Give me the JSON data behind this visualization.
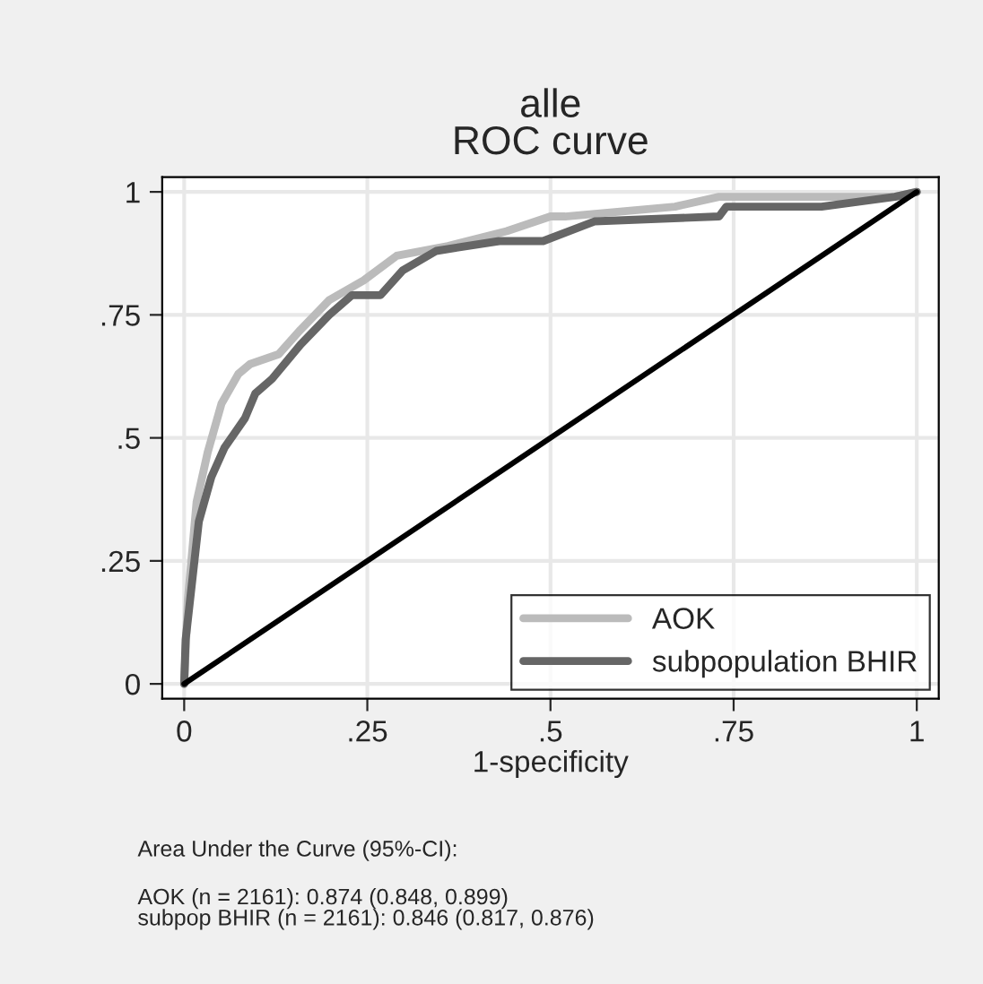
{
  "chart_data": {
    "type": "line",
    "title": "alle\nROC curve",
    "xlabel": "1-specificity",
    "xlim": [
      0,
      1
    ],
    "ylim": [
      0,
      1
    ],
    "xticks": [
      0,
      {
        "value": 0.25,
        "label": ".25"
      },
      {
        "value": 0.5,
        "label": ".5"
      },
      {
        "value": 0.75,
        "label": ".75"
      },
      1
    ],
    "yticks": [
      0,
      {
        "value": 0.25,
        "label": ".25"
      },
      {
        "value": 0.5,
        "label": ".5"
      },
      {
        "value": 0.75,
        "label": ".75"
      },
      1
    ],
    "grid": true,
    "legend": "bottom right",
    "line_style": "solid",
    "marker": "none",
    "series": [
      {
        "name": "AOK",
        "color": "#bbbbbb",
        "x": [
          0,
          0.005,
          0.017,
          0.032,
          0.051,
          0.074,
          0.09,
          0.129,
          0.159,
          0.198,
          0.245,
          0.29,
          0.36,
          0.44,
          0.5,
          0.52,
          0.67,
          0.73,
          0.97,
          1
        ],
        "values": [
          0,
          0.17,
          0.37,
          0.47,
          0.57,
          0.63,
          0.65,
          0.67,
          0.72,
          0.78,
          0.82,
          0.87,
          0.89,
          0.92,
          0.95,
          0.95,
          0.97,
          0.99,
          0.99,
          1
        ]
      },
      {
        "name": "subpopulation BHIR",
        "color": "#666666",
        "x": [
          0,
          0.002,
          0.02,
          0.037,
          0.055,
          0.083,
          0.097,
          0.12,
          0.159,
          0.198,
          0.229,
          0.268,
          0.298,
          0.344,
          0.43,
          0.49,
          0.56,
          0.73,
          0.74,
          0.87,
          0.97,
          1
        ],
        "values": [
          0,
          0.09,
          0.33,
          0.42,
          0.48,
          0.54,
          0.59,
          0.62,
          0.69,
          0.75,
          0.79,
          0.79,
          0.84,
          0.88,
          0.9,
          0.9,
          0.94,
          0.95,
          0.97,
          0.97,
          0.99,
          1
        ]
      },
      {
        "color": "#000000",
        "x": [
          0,
          1
        ],
        "values": [
          0,
          1
        ]
      }
    ],
    "annotations": [
      "Area Under the Curve (95%-CI):",
      "AOK (n = 2161): 0.874 (0.848, 0.899)\nsubpop BHIR (n = 2161): 0.846 (0.817, 0.876)"
    ]
  }
}
